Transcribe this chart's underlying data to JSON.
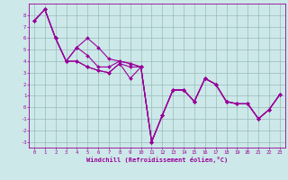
{
  "xlabel": "Windchill (Refroidissement éolien,°C)",
  "bg_color": "#cce8e8",
  "line_color": "#990099",
  "grid_color": "#99bbbb",
  "ylim": [
    -3.5,
    9.0
  ],
  "xlim": [
    -0.5,
    23.5
  ],
  "yticks": [
    -3,
    -2,
    -1,
    0,
    1,
    2,
    3,
    4,
    5,
    6,
    7,
    8
  ],
  "xticks": [
    0,
    1,
    2,
    3,
    4,
    5,
    6,
    7,
    8,
    9,
    10,
    11,
    12,
    13,
    14,
    15,
    16,
    17,
    18,
    19,
    20,
    21,
    22,
    23
  ],
  "lines": [
    [
      7.5,
      8.5,
      6.0,
      4.0,
      5.2,
      6.0,
      5.2,
      4.2,
      4.0,
      3.8,
      3.5,
      -3.0,
      -0.7,
      1.5,
      1.5,
      0.5,
      2.5,
      2.0,
      0.5,
      0.3,
      0.3,
      -1.0,
      -0.2,
      1.1
    ],
    [
      7.5,
      8.5,
      6.0,
      4.0,
      5.2,
      4.5,
      3.5,
      3.5,
      4.0,
      3.8,
      3.5,
      -3.0,
      -0.7,
      1.5,
      1.5,
      0.5,
      2.5,
      2.0,
      0.5,
      0.3,
      0.3,
      -1.0,
      -0.2,
      1.1
    ],
    [
      7.5,
      8.5,
      6.0,
      4.0,
      4.0,
      3.5,
      3.2,
      3.0,
      3.8,
      2.5,
      3.5,
      -3.0,
      -0.7,
      1.5,
      1.5,
      0.5,
      2.5,
      2.0,
      0.5,
      0.3,
      0.3,
      -1.0,
      -0.2,
      1.1
    ],
    [
      7.5,
      8.5,
      6.0,
      4.0,
      4.0,
      3.5,
      3.2,
      3.0,
      3.8,
      3.5,
      3.5,
      -3.0,
      -0.7,
      1.5,
      1.5,
      0.5,
      2.5,
      2.0,
      0.5,
      0.3,
      0.3,
      -1.0,
      -0.2,
      1.1
    ]
  ]
}
